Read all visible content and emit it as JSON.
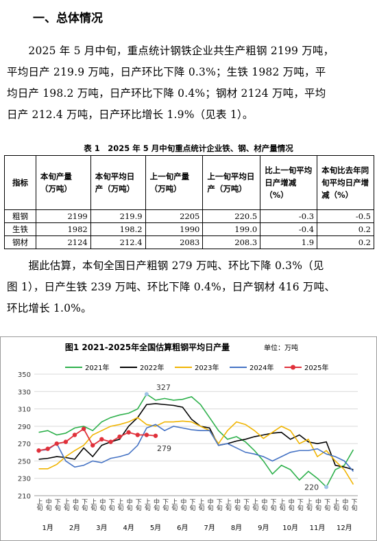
{
  "header": {
    "title": "一、总体情况"
  },
  "paragraph1": [
    "　　2025 年 5 月中旬，重点统计钢铁企业共生产粗钢 2199 万吨，",
    "平均日产 219.9 万吨，日产环比下降 0.3%；生铁 1982 万吨，平",
    "均日产 198.2 万吨，日产环比下降 0.4%；钢材 2124 万吨，平均",
    "日产 212.4 万吨，日产环比增长 1.9%（见表 1）。"
  ],
  "table": {
    "title": "表 1　2025 年 5 月中旬重点统计企业铁、钢、材产量情况",
    "header": [
      "指标",
      "本旬产量（万吨）",
      "本旬平均日产（万吨）",
      "上一旬产量（万吨）",
      "上一旬平均日产（万吨）",
      "比上一旬平均日产增减（%）",
      "本旬比去年同旬平均日产增减（%）"
    ],
    "rows": [
      [
        "粗钢",
        "2199",
        "219.9",
        "2205",
        "220.5",
        "-0.3",
        "-0.5"
      ],
      [
        "生铁",
        "1982",
        "198.2",
        "1990",
        "199.0",
        "-0.4",
        "0.2"
      ],
      [
        "钢材",
        "2124",
        "212.4",
        "2083",
        "208.3",
        "1.9",
        "0.2"
      ]
    ]
  },
  "paragraph2": [
    "　　据此估算，本旬全国日产粗钢 279 万吨、环比下降 0.3%（见",
    "图 1），日产生铁 239 万吨、环比下降 0.4%，日产钢材 416 万吨、",
    "环比增长 1.0%。"
  ],
  "chart_data": {
    "type": "line",
    "title": "图1  2021-2025年全国估算粗钢平均日产量",
    "unit": "单位：万吨",
    "categories": [
      "上旬",
      "中旬",
      "下旬",
      "上旬",
      "中旬",
      "下旬",
      "上旬",
      "中旬",
      "下旬",
      "上旬",
      "中旬",
      "下旬",
      "上旬",
      "中旬",
      "下旬",
      "上旬",
      "中旬",
      "下旬",
      "上旬",
      "中旬",
      "下旬",
      "上旬",
      "中旬",
      "下旬",
      "上旬",
      "中旬",
      "下旬",
      "上旬",
      "中旬",
      "下旬",
      "上旬",
      "中旬",
      "下旬",
      "上旬",
      "中旬",
      "下旬"
    ],
    "months": [
      "1月",
      "2月",
      "3月",
      "4月",
      "5月",
      "6月",
      "7月",
      "8月",
      "9月",
      "10月",
      "11月",
      "12月"
    ],
    "ylim": [
      210,
      350
    ],
    "yticks": [
      210,
      230,
      250,
      270,
      290,
      310,
      330,
      350
    ],
    "series": [
      {
        "name": "2021年",
        "color": "#2db04b",
        "values": [
          283,
          285,
          280,
          282,
          288,
          290,
          285,
          295,
          300,
          303,
          305,
          310,
          327,
          320,
          322,
          320,
          321,
          324,
          315,
          300,
          285,
          275,
          278,
          272,
          262,
          250,
          235,
          245,
          240,
          228,
          238,
          230,
          220,
          240,
          245,
          263
        ]
      },
      {
        "name": "2022年",
        "color": "#000000",
        "values": [
          252,
          253,
          255,
          254,
          252,
          265,
          255,
          268,
          272,
          275,
          290,
          300,
          315,
          316,
          315,
          314,
          312,
          298,
          290,
          288,
          268,
          270,
          273,
          275,
          278,
          280,
          282,
          283,
          275,
          280,
          272,
          270,
          272,
          245,
          243,
          240
        ]
      },
      {
        "name": "2023年",
        "color": "#f0b400",
        "values": [
          241,
          241,
          246,
          255,
          262,
          268,
          280,
          285,
          290,
          292,
          295,
          300,
          292,
          290,
          295,
          295,
          296,
          295,
          290,
          285,
          270,
          285,
          295,
          292,
          285,
          276,
          283,
          290,
          285,
          270,
          275,
          255,
          262,
          250,
          240,
          223
        ]
      },
      {
        "name": "2024年",
        "color": "#4472c4",
        "values": [
          262,
          263,
          270,
          250,
          243,
          245,
          250,
          248,
          253,
          255,
          258,
          268,
          288,
          292,
          285,
          290,
          288,
          286,
          285,
          285,
          268,
          270,
          265,
          260,
          258,
          255,
          250,
          255,
          260,
          262,
          262,
          264,
          258,
          255,
          250,
          238
        ]
      },
      {
        "name": "2025年",
        "color": "#e0303a",
        "values": [
          262,
          264,
          270,
          272,
          280,
          287,
          268,
          275,
          272,
          278,
          283,
          280,
          280,
          279,
          null,
          null,
          null,
          null,
          null,
          null,
          null,
          null,
          null,
          null,
          null,
          null,
          null,
          null,
          null,
          null,
          null,
          null,
          null,
          null,
          null,
          null
        ]
      }
    ]
  }
}
